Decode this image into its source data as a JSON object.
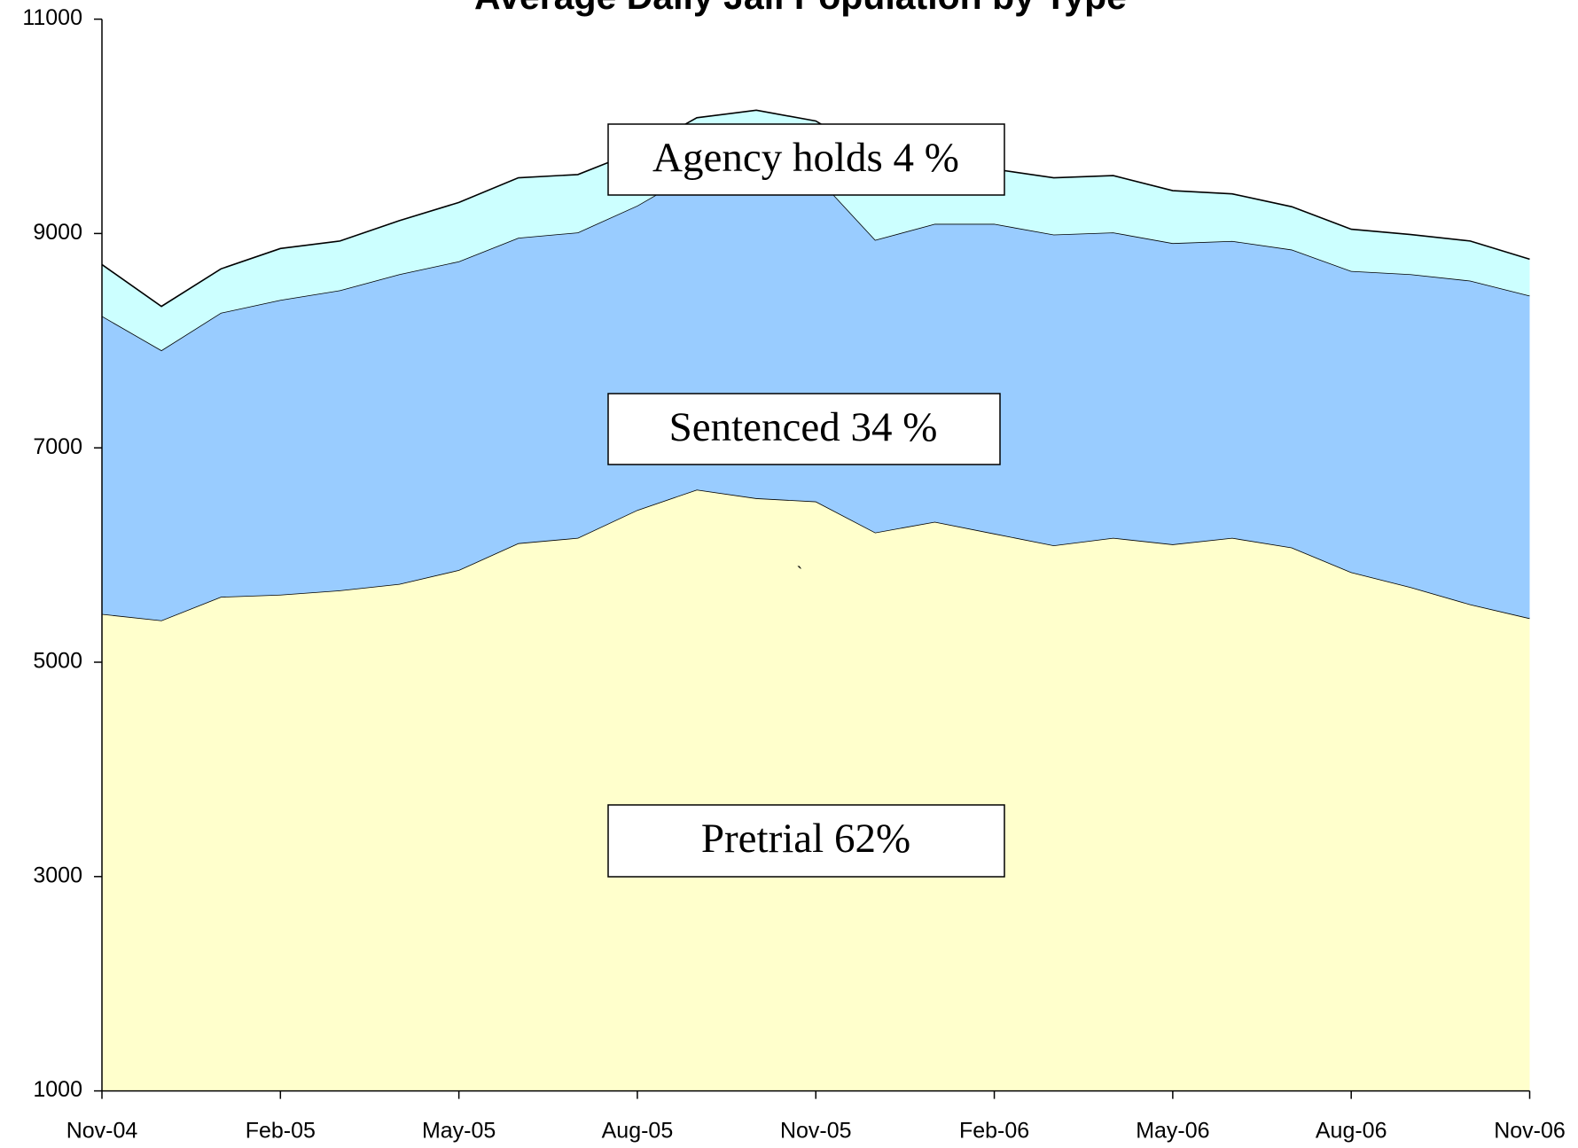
{
  "chart_data": {
    "type": "stacked_area",
    "title": "Average Daily Jail Population by Type",
    "categories": [
      "Nov-04",
      null,
      null,
      "Feb-05",
      null,
      null,
      "May-05",
      null,
      null,
      "Aug-05",
      null,
      null,
      "Nov-05",
      null,
      null,
      "Feb-06",
      null,
      null,
      "May-06",
      null,
      null,
      "Aug-06",
      null,
      null,
      "Nov-06"
    ],
    "series": [
      {
        "name": "Pretrial",
        "color": "#ffffcc",
        "values": [
          5450,
          5390,
          5610,
          5630,
          5670,
          5730,
          5860,
          6110,
          6160,
          6420,
          6610,
          6530,
          6500,
          6210,
          6310,
          6200,
          6090,
          6160,
          6100,
          6160,
          6070,
          5840,
          5700,
          5540,
          5410
        ]
      },
      {
        "name": "Sentenced",
        "color": "#99ccff",
        "values": [
          2780,
          2520,
          2650,
          2750,
          2800,
          2890,
          2880,
          2850,
          2850,
          2840,
          2970,
          3100,
          3040,
          2730,
          2780,
          2890,
          2900,
          2850,
          2810,
          2770,
          2780,
          2810,
          2920,
          3020,
          3010
        ]
      },
      {
        "name": "Agency holds",
        "color": "#ccffff",
        "values": [
          480,
          410,
          410,
          480,
          460,
          500,
          550,
          560,
          540,
          510,
          500,
          520,
          510,
          780,
          590,
          510,
          530,
          530,
          490,
          440,
          400,
          390,
          370,
          370,
          340
        ]
      }
    ],
    "annotations": [
      "Agency holds 4 %",
      "Sentenced  34 %",
      "Pretrial  62%",
      "`"
    ],
    "ylim": [
      1000,
      11000
    ],
    "yticks": [
      1000,
      3000,
      5000,
      7000,
      9000,
      11000
    ],
    "grid": false
  }
}
